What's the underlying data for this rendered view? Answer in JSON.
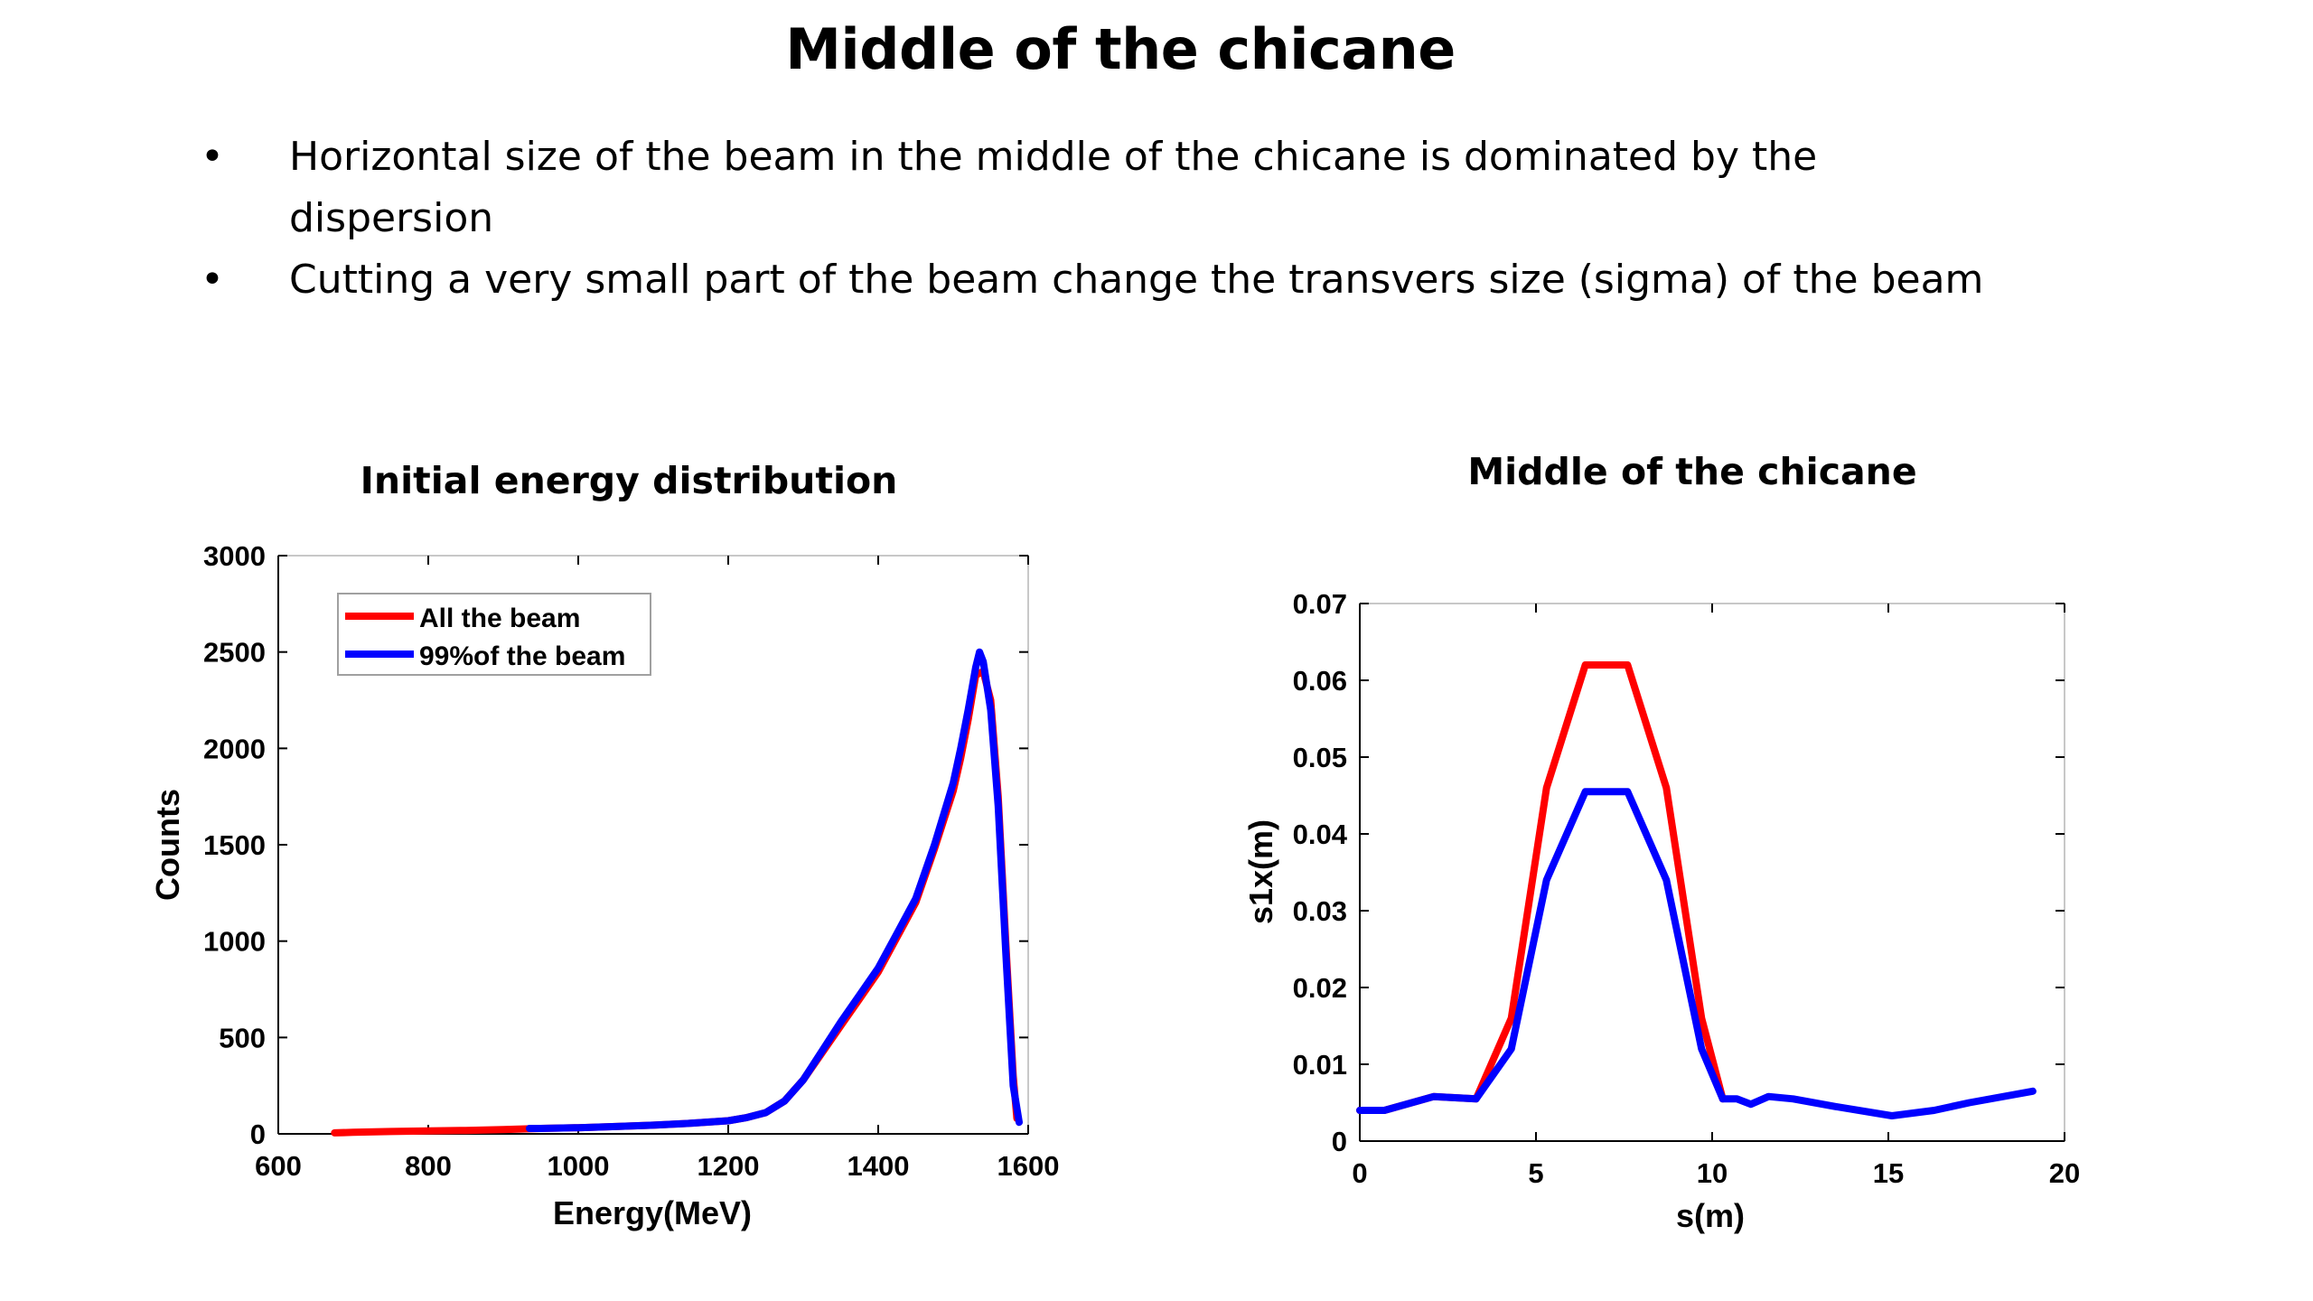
{
  "slide": {
    "title": "Middle of the chicane",
    "bullets": [
      {
        "marker": "•",
        "text": "Horizontal size of the beam in the middle of the chicane is dominated by the dispersion"
      },
      {
        "marker": "•",
        "text": "Cutting a very small part of the beam change the transvers size (sigma) of the beam"
      }
    ]
  },
  "colors": {
    "all_beam": "#ff0000",
    "beam_99": "#0000ff",
    "axis": "#000000",
    "frame": "#c8c8c8"
  },
  "chart_data": [
    {
      "type": "line",
      "title": "Initial energy distribution",
      "xlabel": "Energy(MeV)",
      "ylabel": "Counts",
      "xlim": [
        600,
        1600
      ],
      "ylim": [
        0,
        3000
      ],
      "xticks": [
        "600",
        "800",
        "1000",
        "1200",
        "1400",
        "1600"
      ],
      "yticks": [
        "0",
        "500",
        "1000",
        "1500",
        "2000",
        "2500",
        "3000"
      ],
      "legend": "top-left",
      "grid": false,
      "series": [
        {
          "name": "All the beam",
          "color": "#ff0000",
          "x": [
            675,
            700,
            750,
            800,
            850,
            900,
            950,
            1000,
            1050,
            1100,
            1150,
            1200,
            1225,
            1250,
            1275,
            1300,
            1325,
            1350,
            1375,
            1400,
            1425,
            1450,
            1475,
            1500,
            1510,
            1520,
            1530,
            1540,
            1550,
            1560,
            1570,
            1580,
            1585
          ],
          "y": [
            5,
            8,
            12,
            15,
            18,
            22,
            28,
            32,
            38,
            45,
            55,
            68,
            85,
            110,
            170,
            280,
            420,
            560,
            700,
            840,
            1020,
            1200,
            1480,
            1780,
            1950,
            2150,
            2380,
            2400,
            2250,
            1750,
            1000,
            300,
            80
          ]
        },
        {
          "name": "99%of the beam",
          "color": "#0000ff",
          "x": [
            935,
            950,
            1000,
            1050,
            1100,
            1150,
            1200,
            1225,
            1250,
            1275,
            1300,
            1325,
            1350,
            1375,
            1400,
            1425,
            1450,
            1475,
            1500,
            1510,
            1520,
            1530,
            1535,
            1540,
            1550,
            1560,
            1570,
            1580,
            1588
          ],
          "y": [
            28,
            28,
            32,
            38,
            45,
            55,
            68,
            85,
            110,
            170,
            280,
            430,
            580,
            720,
            860,
            1040,
            1220,
            1500,
            1820,
            2000,
            2200,
            2420,
            2500,
            2450,
            2200,
            1700,
            950,
            250,
            60
          ]
        }
      ]
    },
    {
      "type": "line",
      "title": "Middle of the chicane",
      "xlabel": "s(m)",
      "ylabel": "s1x(m)",
      "xlim": [
        0,
        20
      ],
      "ylim": [
        0,
        0.07
      ],
      "xticks": [
        "0",
        "5",
        "10",
        "15",
        "20"
      ],
      "yticks": [
        "0",
        "0.01",
        "0.02",
        "0.03",
        "0.04",
        "0.05",
        "0.06",
        "0.07"
      ],
      "grid": false,
      "series": [
        {
          "name": "All the beam",
          "color": "#ff0000",
          "x": [
            0,
            0.7,
            2.1,
            3.3,
            4.3,
            5.3,
            6.4,
            7.6,
            8.7,
            9.7,
            10.3
          ],
          "y": [
            0.004,
            0.004,
            0.0058,
            0.0055,
            0.016,
            0.046,
            0.062,
            0.062,
            0.046,
            0.016,
            0.0055
          ]
        },
        {
          "name": "99%of the beam",
          "color": "#0000ff",
          "x": [
            0,
            0.7,
            2.1,
            3.3,
            4.3,
            5.3,
            6.4,
            7.6,
            8.7,
            9.7,
            10.3,
            10.7,
            11.1,
            11.6,
            12.3,
            13.5,
            15.1,
            16.3,
            17.3,
            19.1
          ],
          "y": [
            0.004,
            0.004,
            0.0058,
            0.0055,
            0.012,
            0.034,
            0.0455,
            0.0455,
            0.034,
            0.012,
            0.0055,
            0.0055,
            0.0048,
            0.0058,
            0.0055,
            0.0045,
            0.0033,
            0.004,
            0.005,
            0.0065
          ]
        }
      ]
    }
  ]
}
